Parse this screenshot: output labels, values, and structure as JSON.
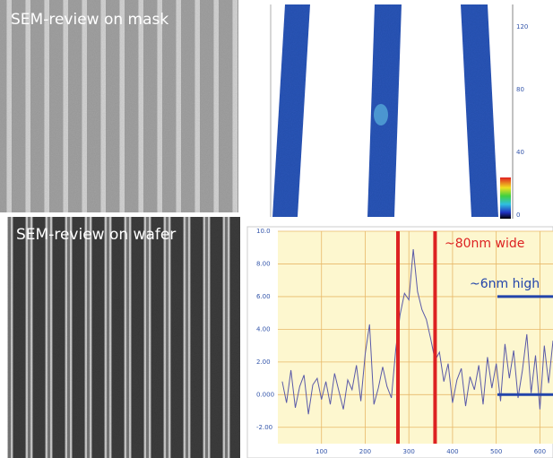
{
  "panels": {
    "mask_label": "SEM-review on mask",
    "wafer_label": "SEM-review on wafer",
    "afm_scale_ticks": [
      "120",
      "80",
      "40",
      "0"
    ]
  },
  "chart_data": {
    "type": "line",
    "x": [
      10,
      20,
      30,
      40,
      50,
      60,
      70,
      80,
      90,
      100,
      110,
      120,
      130,
      140,
      150,
      160,
      170,
      180,
      190,
      200,
      210,
      220,
      230,
      240,
      250,
      260,
      270,
      280,
      290,
      300,
      310,
      320,
      330,
      340,
      350,
      360,
      370,
      380,
      390,
      400,
      410,
      420,
      430,
      440,
      450,
      460,
      470,
      480,
      490,
      500,
      510,
      520,
      530,
      540,
      550,
      560,
      570,
      580,
      590,
      600,
      610,
      620,
      630
    ],
    "series": [
      {
        "color": "#5a5aa8",
        "values": [
          0.8,
          -0.5,
          1.5,
          -0.8,
          0.5,
          1.2,
          -1.2,
          0.6,
          1.0,
          -0.3,
          0.8,
          -0.6,
          1.3,
          0.2,
          -0.9,
          0.9,
          0.3,
          1.8,
          -0.4,
          2.5,
          4.3,
          -0.6,
          0.4,
          1.7,
          0.5,
          -0.2,
          2.8,
          4.9,
          6.2,
          5.8,
          8.9,
          6.3,
          5.2,
          4.6,
          3.4,
          2.1,
          2.6,
          0.8,
          1.9,
          -0.5,
          0.9,
          1.6,
          -0.7,
          1.1,
          0.3,
          1.8,
          -0.6,
          2.3,
          0.4,
          1.9,
          -0.4,
          3.1,
          1.0,
          2.7,
          -0.2,
          1.5,
          3.7,
          0.1,
          2.4,
          -0.9,
          3.0,
          0.7,
          3.3
        ]
      }
    ],
    "xlim": [
      0,
      630
    ],
    "ylim": [
      -3,
      10
    ],
    "xticks": [
      100,
      200,
      300,
      400,
      500,
      600
    ],
    "yticks": [
      {
        "value": 10,
        "label": "10.0"
      },
      {
        "value": 8,
        "label": "8.00"
      },
      {
        "value": 6,
        "label": "6.00"
      },
      {
        "value": 4,
        "label": "4.00"
      },
      {
        "value": 2,
        "label": "2.00"
      },
      {
        "value": 0,
        "label": "0.000"
      },
      {
        "value": -2,
        "label": "-2.00"
      }
    ],
    "grid": true,
    "width_lines_x": [
      275,
      360
    ],
    "width_color": "#dd2222",
    "height_levels": [
      0,
      6
    ],
    "height_color": "#2244aa",
    "annotations": [
      "~80nm wide",
      "~6nm high"
    ]
  }
}
